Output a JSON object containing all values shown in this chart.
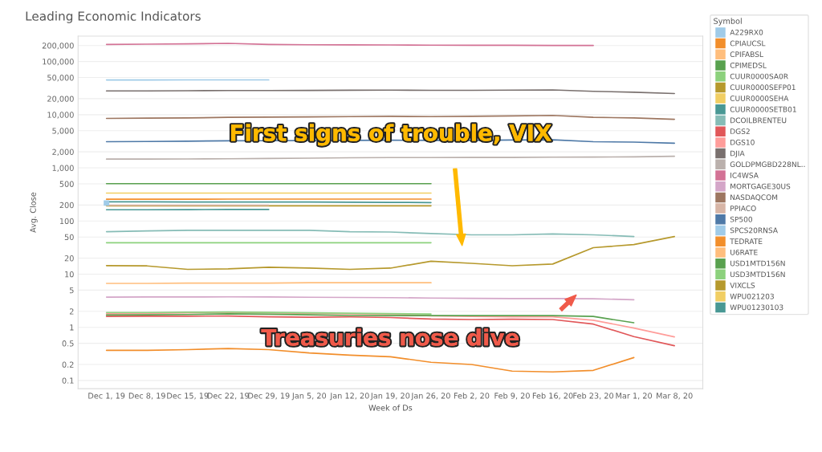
{
  "chart_data": {
    "type": "line",
    "title": "Leading Economic Indicators",
    "xlabel": "Week of Ds",
    "ylabel": "Avg. Close",
    "legend_title": "Symbol",
    "legend": "right",
    "grid": "y",
    "log": true,
    "line_style": "solid",
    "categories": [
      "Dec 1, 19",
      "Dec 8, 19",
      "Dec 15, 19",
      "Dec 22, 19",
      "Dec 29, 19",
      "Jan 5, 20",
      "Jan 12, 20",
      "Jan 19, 20",
      "Jan 26, 20",
      "Feb 2, 20",
      "Feb 9, 20",
      "Feb 16, 20",
      "Feb 23, 20",
      "Mar 1, 20",
      "Mar 8, 20"
    ],
    "ylim": [
      0.07,
      300000
    ],
    "yticks": [
      0.1,
      0.2,
      0.5,
      1,
      2,
      5,
      10,
      20,
      50,
      100,
      200,
      500,
      {
        "value": 1000,
        "label": "1,000"
      },
      {
        "value": 2000,
        "label": "2,000"
      },
      {
        "value": 5000,
        "label": "5,000"
      },
      {
        "value": 10000,
        "label": "10,000"
      },
      {
        "value": 20000,
        "label": "20,000"
      },
      {
        "value": 50000,
        "label": "50,000"
      },
      {
        "value": 100000,
        "label": "100,000"
      },
      {
        "value": 200000,
        "label": "200,000"
      }
    ],
    "series": [
      {
        "name": "A229RX0",
        "color": "#a0cbe8",
        "values": [
          45000,
          45000,
          45100,
          45100,
          45200,
          null,
          null,
          null,
          null,
          null,
          null,
          null,
          null,
          null,
          null
        ]
      },
      {
        "name": "CPIAUCSL",
        "color": "#f28e2b",
        "values": [
          257,
          257,
          257,
          258,
          258,
          258,
          258,
          258,
          258,
          null,
          null,
          null,
          null,
          null,
          null
        ]
      },
      {
        "name": "CPIFABSL",
        "color": "#ffbe7d",
        "values": [
          null,
          null,
          null,
          null,
          null,
          null,
          null,
          null,
          null,
          null,
          null,
          null,
          null,
          null,
          null
        ]
      },
      {
        "name": "CPIMEDSL",
        "color": "#59a14f",
        "values": [
          505,
          505,
          505,
          505,
          505,
          505,
          505,
          505,
          505,
          null,
          null,
          null,
          null,
          null,
          null
        ]
      },
      {
        "name": "CUUR0000SA0R",
        "color": "#8cd17d",
        "values": [
          39,
          39,
          39,
          39,
          39,
          39,
          39,
          39,
          39,
          null,
          null,
          null,
          null,
          null,
          null
        ]
      },
      {
        "name": "CUUR0000SEFP01",
        "color": "#b6992d",
        "values": [
          193,
          193,
          193,
          193,
          193,
          193,
          193,
          193,
          193,
          null,
          null,
          null,
          null,
          null,
          null
        ]
      },
      {
        "name": "CUUR0000SEHA",
        "color": "#f1ce63",
        "values": [
          335,
          335,
          335,
          335,
          335,
          335,
          335,
          335,
          335,
          null,
          null,
          null,
          null,
          null,
          null
        ]
      },
      {
        "name": "CUUR0000SETB01",
        "color": "#499894",
        "values": [
          229,
          229,
          228,
          228,
          227,
          227,
          226,
          224,
          222,
          null,
          null,
          null,
          null,
          null,
          null
        ]
      },
      {
        "name": "DCOILBRENTEU",
        "color": "#86bcb6",
        "values": [
          63,
          65,
          67,
          67,
          67,
          67,
          63,
          62,
          58,
          55,
          55,
          57,
          55,
          51,
          null
        ]
      },
      {
        "name": "DGS2",
        "color": "#e15759",
        "values": [
          1.6,
          1.62,
          1.62,
          1.63,
          1.58,
          1.55,
          1.57,
          1.53,
          1.43,
          1.4,
          1.42,
          1.4,
          1.15,
          0.67,
          0.45
        ]
      },
      {
        "name": "DGS10",
        "color": "#ff9d9a",
        "values": [
          1.8,
          1.83,
          1.88,
          1.9,
          1.88,
          1.82,
          1.8,
          1.78,
          1.65,
          1.6,
          1.58,
          1.58,
          1.36,
          0.97,
          0.66
        ]
      },
      {
        "name": "DJIA",
        "color": "#79706e",
        "values": [
          28000,
          28000,
          28200,
          28500,
          28500,
          28600,
          28800,
          29000,
          28700,
          28700,
          29000,
          29200,
          27500,
          26500,
          25000
        ]
      },
      {
        "name": "GOLDPMGBD228NL..",
        "color": "#bab0ac",
        "values": [
          1460,
          1460,
          1470,
          1480,
          1500,
          1520,
          1550,
          1560,
          1560,
          1570,
          1570,
          1590,
          1600,
          1610,
          1650
        ]
      },
      {
        "name": "IC4WSA",
        "color": "#d37295",
        "values": [
          210000,
          212000,
          215000,
          220000,
          210000,
          207000,
          206000,
          205000,
          203000,
          202000,
          202000,
          200000,
          200000,
          null,
          null
        ]
      },
      {
        "name": "MORTGAGE30US",
        "color": "#d4a6c8",
        "values": [
          3.7,
          3.72,
          3.73,
          3.74,
          3.72,
          3.68,
          3.65,
          3.62,
          3.55,
          3.5,
          3.48,
          3.48,
          3.45,
          3.3,
          null
        ]
      },
      {
        "name": "NASDAQCOM",
        "color": "#9d7660",
        "values": [
          8500,
          8600,
          8700,
          8900,
          9000,
          9100,
          9200,
          9300,
          9200,
          9300,
          9500,
          9700,
          8900,
          8700,
          8200
        ]
      },
      {
        "name": "PPIACO",
        "color": "#d7b5a6",
        "values": [
          198,
          198,
          198,
          198,
          198,
          null,
          null,
          null,
          null,
          null,
          null,
          null,
          null,
          null,
          null
        ]
      },
      {
        "name": "SP500",
        "color": "#4e79a7",
        "values": [
          3100,
          3130,
          3170,
          3230,
          3240,
          3250,
          3290,
          3320,
          3280,
          3290,
          3340,
          3370,
          3100,
          3050,
          2900
        ]
      },
      {
        "name": "SPCS20RNSA",
        "color": "#a0cbe8",
        "marker": "square",
        "values": [
          218,
          null,
          null,
          null,
          null,
          null,
          null,
          null,
          null,
          null,
          null,
          null,
          null,
          null,
          null
        ]
      },
      {
        "name": "TEDRATE",
        "color": "#f28e2b",
        "values": [
          0.37,
          0.37,
          0.38,
          0.4,
          0.38,
          0.33,
          0.3,
          0.28,
          0.22,
          0.2,
          0.15,
          0.145,
          0.155,
          0.27,
          null
        ]
      },
      {
        "name": "U6RATE",
        "color": "#ffbe7d",
        "values": [
          6.7,
          6.7,
          6.8,
          6.8,
          6.8,
          6.9,
          6.9,
          6.9,
          6.9,
          null,
          null,
          null,
          null,
          null,
          null
        ]
      },
      {
        "name": "USD1MTD156N",
        "color": "#59a14f",
        "values": [
          1.7,
          1.72,
          1.74,
          1.8,
          1.76,
          1.72,
          1.67,
          1.66,
          1.66,
          1.66,
          1.66,
          1.66,
          1.6,
          1.22,
          null
        ]
      },
      {
        "name": "USD3MTD156N",
        "color": "#8cd17d",
        "values": [
          1.9,
          1.9,
          1.92,
          1.94,
          1.91,
          1.87,
          1.84,
          1.81,
          1.78,
          null,
          null,
          null,
          null,
          null,
          null
        ]
      },
      {
        "name": "VIXCLS",
        "color": "#b6992d",
        "values": [
          14.5,
          14.3,
          12.3,
          12.6,
          13.5,
          13,
          12.3,
          13,
          17.5,
          16,
          14.4,
          15.5,
          31.5,
          36,
          51
        ]
      },
      {
        "name": "WPU021203",
        "color": "#f1ce63",
        "values": [
          null,
          null,
          null,
          null,
          null,
          null,
          null,
          null,
          null,
          null,
          null,
          null,
          null,
          null,
          null
        ]
      },
      {
        "name": "WPU01230103",
        "color": "#499894",
        "values": [
          163,
          163,
          164,
          165,
          165,
          null,
          null,
          null,
          null,
          null,
          null,
          null,
          null,
          null,
          null
        ]
      }
    ],
    "annotations": [
      "First signs of trouble, VIX",
      "Treasuries nose dive"
    ]
  }
}
